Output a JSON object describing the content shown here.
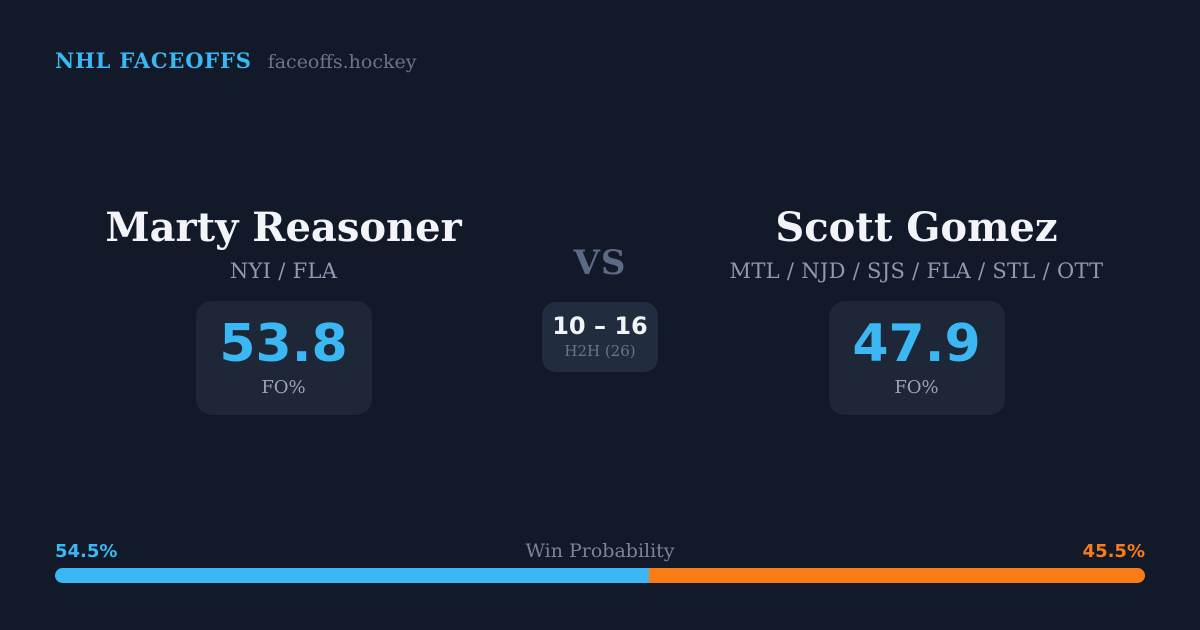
{
  "header": {
    "brand": "NHL FACEOFFS",
    "domain": "faceoffs.hockey"
  },
  "players": {
    "left": {
      "name": "Marty Reasoner",
      "teams": "NYI / FLA",
      "stat_value": "53.8",
      "stat_label": "FO%"
    },
    "right": {
      "name": "Scott Gomez",
      "teams": "MTL / NJD / SJS / FLA / STL / OTT",
      "stat_value": "47.9",
      "stat_label": "FO%"
    }
  },
  "center": {
    "vs": "VS",
    "h2h_score": "10 – 16",
    "h2h_label": "H2H (26)"
  },
  "win_probability": {
    "label": "Win Probability",
    "left_pct_text": "54.5%",
    "right_pct_text": "45.5%",
    "left_value": 54.5,
    "right_value": 45.5
  },
  "colors": {
    "background": "#121A2A",
    "card": "#1D2738",
    "card_h2h": "#222C3F",
    "accent_blue": "#3BB7F4",
    "accent_orange": "#F97C16",
    "text_white": "#F2F4F7",
    "text_team": "#8C9BB1",
    "text_vs": "#5C6A83",
    "text_muted": "#6A7586",
    "text_fo": "#9AA4B2",
    "text_winprob": "#77859B"
  }
}
